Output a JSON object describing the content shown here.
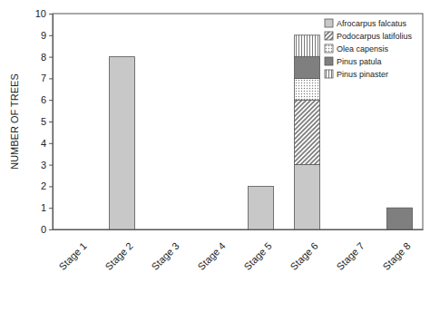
{
  "chart_data": {
    "type": "bar",
    "stacked": true,
    "ylabel": "NUMBER OF TREES",
    "categories": [
      "Stage 1",
      "Stage 2",
      "Stage 3",
      "Stage 4",
      "Stage 5",
      "Stage 6",
      "Stage 7",
      "Stage 8"
    ],
    "series": [
      {
        "name": "Afrocarpus falcatus",
        "color": "#c8c8c8",
        "values": [
          0,
          8,
          0,
          0,
          2,
          3,
          0,
          0
        ]
      },
      {
        "name": "Podocarpus latifolius",
        "color": "#7a7a7a",
        "values": [
          0,
          0,
          0,
          0,
          0,
          3,
          0,
          0
        ]
      },
      {
        "name": "Olea capensis",
        "color": "#7a7a7a",
        "values": [
          0,
          0,
          0,
          0,
          0,
          1,
          0,
          0
        ]
      },
      {
        "name": "Pinus patula",
        "color": "#7f7f7f",
        "values": [
          0,
          0,
          0,
          0,
          0,
          1,
          0,
          1
        ]
      },
      {
        "name": "Pinus pinaster",
        "color": "#7a7a7a",
        "values": [
          0,
          0,
          0,
          0,
          0,
          1,
          0,
          0
        ]
      }
    ],
    "ylim": [
      0,
      10
    ],
    "yticks": [
      0,
      1,
      2,
      3,
      4,
      5,
      6,
      7,
      8,
      9,
      10
    ],
    "legend": "upper right"
  }
}
